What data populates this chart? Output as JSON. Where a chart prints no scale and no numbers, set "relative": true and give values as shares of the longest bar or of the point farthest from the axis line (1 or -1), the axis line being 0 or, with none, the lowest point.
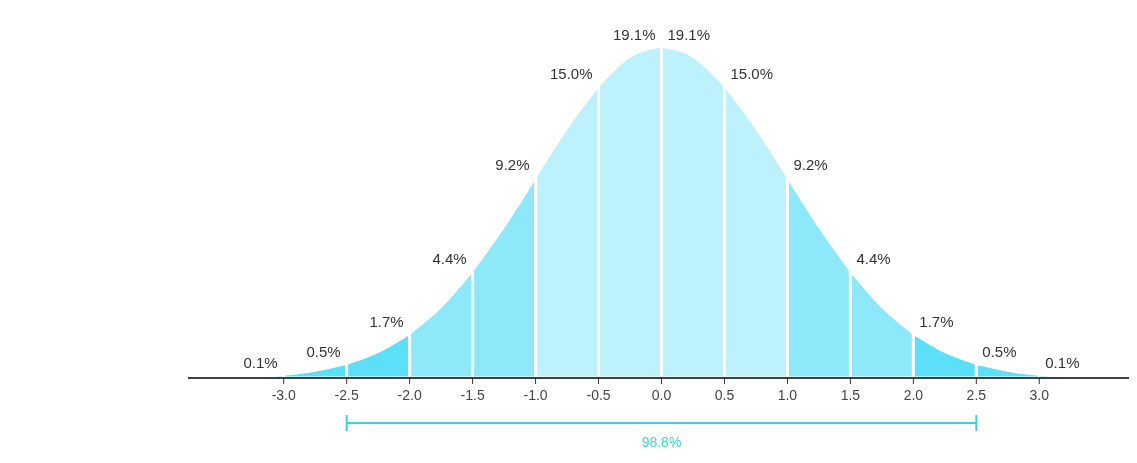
{
  "chart_data": {
    "type": "area",
    "relative": true,
    "xlim": [
      -3.76,
      3.76
    ],
    "xticks": [
      {
        "value": -3,
        "label": "-3.0"
      },
      {
        "value": -2.5,
        "label": "-2.5"
      },
      {
        "value": -2,
        "label": "-2.0"
      },
      {
        "value": -1.5,
        "label": "-1.5"
      },
      {
        "value": -1,
        "label": "-1.0"
      },
      {
        "value": -0.5,
        "label": "-0.5"
      },
      {
        "value": 0,
        "label": "0.0"
      },
      {
        "value": 0.5,
        "label": "0.5"
      },
      {
        "value": 1,
        "label": "1.0"
      },
      {
        "value": 1.5,
        "label": "1.5"
      },
      {
        "value": 2,
        "label": "2.0"
      },
      {
        "value": 2.5,
        "label": "2.5"
      },
      {
        "value": 3,
        "label": "3.0"
      }
    ],
    "series": [
      {
        "color": "#5ce0fa",
        "x": [
          -3.5,
          -3.25,
          -3
        ],
        "values": [
          0.002,
          0.005,
          0.011
        ]
      },
      {
        "color": "#5ce0fa",
        "x": [
          -3,
          -2.75,
          -2.5
        ],
        "values": [
          0.011,
          0.023,
          0.044
        ]
      },
      {
        "color": "#5ce0fa",
        "x": [
          -2.5,
          -2.25,
          -2
        ],
        "values": [
          0.044,
          0.08,
          0.135
        ]
      },
      {
        "color": "#8de8fa",
        "x": [
          -2,
          -1.75,
          -1.5
        ],
        "values": [
          0.135,
          0.216,
          0.325
        ]
      },
      {
        "color": "#8de8fa",
        "x": [
          -1.5,
          -1.25,
          -1
        ],
        "values": [
          0.325,
          0.458,
          0.607
        ]
      },
      {
        "color": "#bdf2fc",
        "x": [
          -1,
          -0.75,
          -0.5
        ],
        "values": [
          0.607,
          0.755,
          0.882
        ]
      },
      {
        "color": "#bdf2fc",
        "x": [
          -0.5,
          -0.25,
          0
        ],
        "values": [
          0.882,
          0.969,
          1
        ]
      },
      {
        "color": "#bdf2fc",
        "x": [
          0,
          0.25,
          0.5
        ],
        "values": [
          1,
          0.969,
          0.882
        ]
      },
      {
        "color": "#bdf2fc",
        "x": [
          0.5,
          0.75,
          1
        ],
        "values": [
          0.882,
          0.755,
          0.607
        ]
      },
      {
        "color": "#8de8fa",
        "x": [
          1,
          1.25,
          1.5
        ],
        "values": [
          0.607,
          0.458,
          0.325
        ]
      },
      {
        "color": "#8de8fa",
        "x": [
          1.5,
          1.75,
          2
        ],
        "values": [
          0.325,
          0.216,
          0.135
        ]
      },
      {
        "color": "#5ce0fa",
        "x": [
          2,
          2.25,
          2.5
        ],
        "values": [
          0.135,
          0.08,
          0.044
        ]
      },
      {
        "color": "#5ce0fa",
        "x": [
          2.5,
          2.75,
          3
        ],
        "values": [
          0.044,
          0.023,
          0.011
        ]
      },
      {
        "color": "#5ce0fa",
        "x": [
          3,
          3.25,
          3.5
        ],
        "values": [
          0.011,
          0.005,
          0.002
        ]
      }
    ],
    "annotations": [
      {
        "text": "0.1%",
        "x": -3,
        "y": 0.011
      },
      {
        "text": "0.5%",
        "x": -2.5,
        "y": 0.044
      },
      {
        "text": "1.7%",
        "x": -2,
        "y": 0.135
      },
      {
        "text": "4.4%",
        "x": -1.5,
        "y": 0.325
      },
      {
        "text": "9.2%",
        "x": -1,
        "y": 0.607
      },
      {
        "text": "15.0%",
        "x": -0.5,
        "y": 0.882
      },
      {
        "text": "19.1%",
        "x": 0,
        "y": 1
      },
      {
        "text": "19.1%",
        "x": 0,
        "y": 1
      },
      {
        "text": "15.0%",
        "x": 0.5,
        "y": 0.882
      },
      {
        "text": "9.2%",
        "x": 1,
        "y": 0.607
      },
      {
        "text": "4.4%",
        "x": 1.5,
        "y": 0.325
      },
      {
        "text": "1.7%",
        "x": 2,
        "y": 0.135
      },
      {
        "text": "0.5%",
        "x": 2.5,
        "y": 0.044
      },
      {
        "text": "0.1%",
        "x": 3,
        "y": 0.011
      },
      "98.8%"
    ]
  }
}
